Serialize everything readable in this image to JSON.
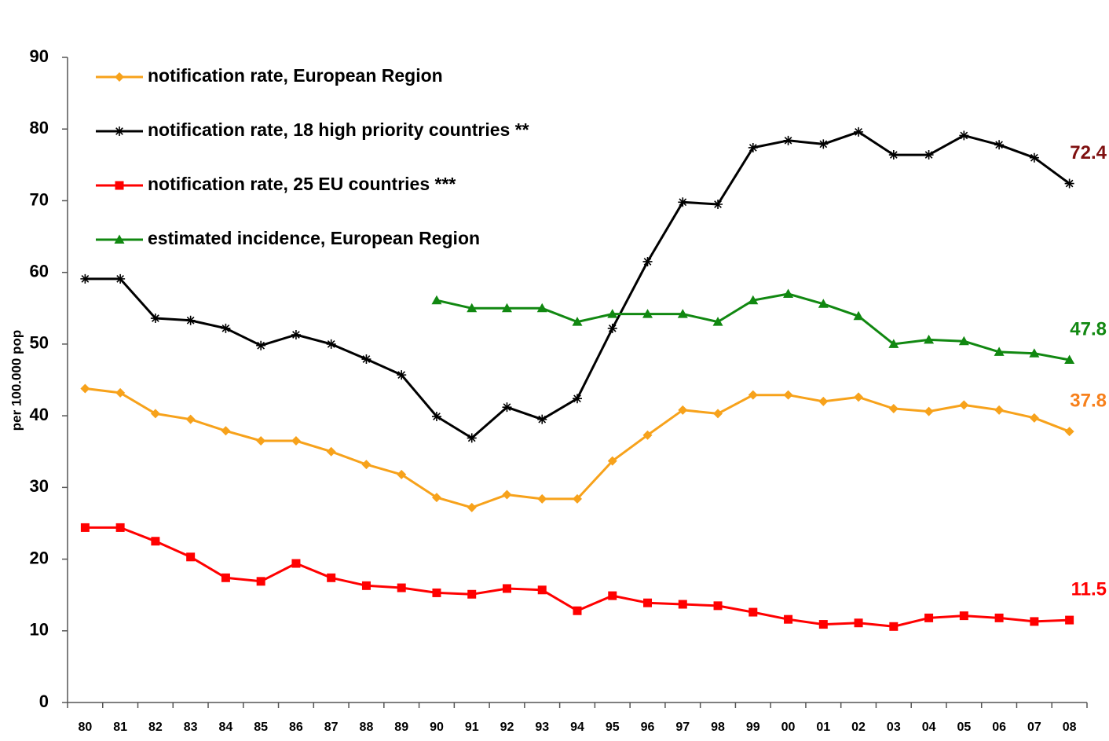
{
  "chart_data": {
    "type": "line",
    "y_axis_label": "per 100.000 pop",
    "categories": [
      "80",
      "81",
      "82",
      "83",
      "84",
      "85",
      "86",
      "87",
      "88",
      "89",
      "90",
      "91",
      "92",
      "93",
      "94",
      "95",
      "96",
      "97",
      "98",
      "99",
      "00",
      "01",
      "02",
      "03",
      "04",
      "05",
      "06",
      "07",
      "08"
    ],
    "ylim": [
      0,
      90
    ],
    "yticks": [
      0,
      10,
      20,
      30,
      40,
      50,
      60,
      70,
      80,
      90
    ],
    "legend": "upper-left",
    "series": [
      {
        "name": "notification rate, European Region",
        "color": "#f7a21b",
        "marker": "diamond",
        "label_color": "#f7801b",
        "values": [
          43.8,
          43.2,
          40.3,
          39.5,
          37.9,
          36.5,
          36.5,
          35.0,
          33.2,
          31.8,
          28.6,
          27.2,
          29.0,
          28.4,
          28.4,
          33.7,
          37.3,
          40.8,
          40.3,
          42.9,
          42.9,
          42.0,
          42.6,
          41.0,
          40.6,
          41.5,
          40.8,
          39.7,
          37.8
        ]
      },
      {
        "name": "notification rate, 18 high priority countries **",
        "color": "#000000",
        "marker": "star",
        "label_color": "#7f1010",
        "values": [
          59.1,
          59.1,
          53.6,
          53.3,
          52.2,
          49.8,
          51.3,
          50.0,
          47.9,
          45.7,
          39.9,
          36.9,
          41.2,
          39.5,
          42.4,
          52.2,
          61.5,
          69.8,
          69.5,
          77.4,
          78.4,
          77.9,
          79.6,
          76.4,
          76.4,
          79.1,
          77.8,
          76.0,
          72.4
        ]
      },
      {
        "name": "notification rate, 25 EU countries ***",
        "color": "#ff0000",
        "marker": "square",
        "label_color": "#ff0000",
        "values": [
          24.4,
          24.4,
          22.5,
          20.3,
          17.4,
          16.9,
          19.4,
          17.4,
          16.3,
          16.0,
          15.3,
          15.1,
          15.9,
          15.7,
          12.8,
          14.9,
          13.9,
          13.7,
          13.5,
          12.6,
          11.6,
          10.9,
          11.1,
          10.6,
          11.8,
          12.1,
          11.8,
          11.3,
          11.5
        ]
      },
      {
        "name": "estimated incidence, European Region",
        "color": "#118811",
        "marker": "triangle",
        "label_color": "#118811",
        "values": [
          null,
          null,
          null,
          null,
          null,
          null,
          null,
          null,
          null,
          null,
          56.1,
          55.0,
          55.0,
          55.0,
          53.1,
          54.2,
          54.2,
          54.2,
          53.1,
          56.1,
          57.0,
          55.6,
          53.9,
          50.0,
          50.6,
          50.4,
          48.9,
          48.7,
          47.8
        ]
      }
    ]
  }
}
